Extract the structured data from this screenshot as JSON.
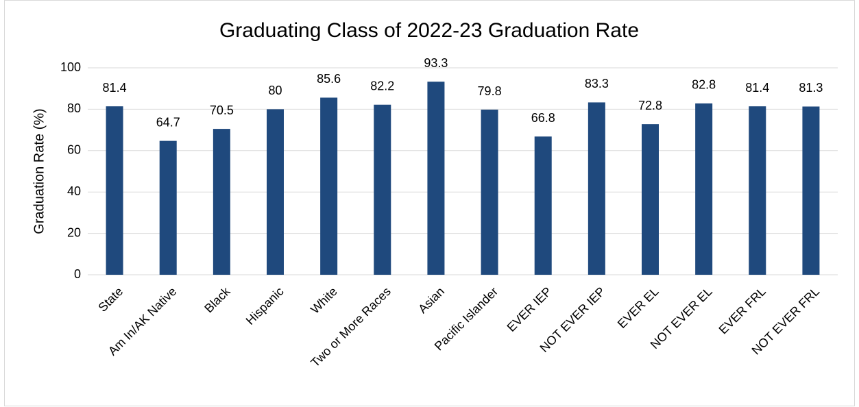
{
  "chart_data": {
    "type": "bar",
    "title": "Graduating Class of 2022-23 Graduation Rate",
    "y_label": "Graduation Rate (%)",
    "categories": [
      "State",
      "Am In/AK Native",
      "Black",
      "Hispanic",
      "White",
      "Two or More Races",
      "Asian",
      "Pacific Islander",
      "EVER IEP",
      "NOT EVER IEP",
      "EVER EL",
      "NOT EVER EL",
      "EVER FRL",
      "NOT EVER FRL"
    ],
    "values": [
      81.4,
      64.7,
      70.5,
      80,
      85.6,
      82.2,
      93.3,
      79.8,
      66.8,
      83.3,
      72.8,
      82.8,
      81.4,
      81.3
    ],
    "color": "#1f497d",
    "ylim": [
      0,
      100
    ],
    "yticks": [
      0,
      20,
      40,
      60,
      80,
      100
    ],
    "grid": true
  }
}
